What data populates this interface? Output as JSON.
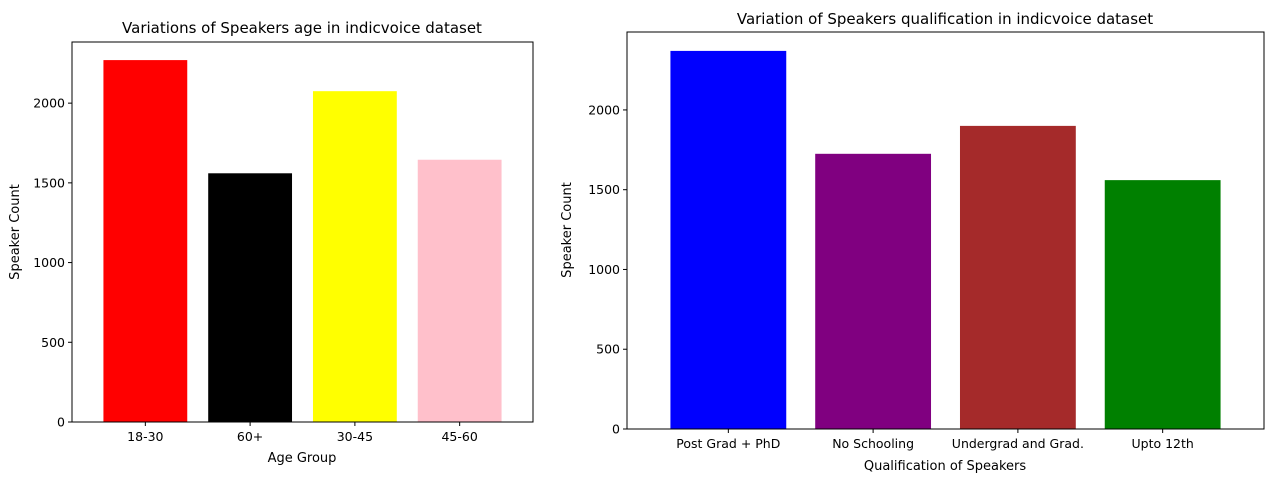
{
  "chart_data": [
    {
      "type": "bar",
      "title": "Variations of Speakers age in indicvoice dataset",
      "xlabel": "Age Group",
      "ylabel": "Speaker Count",
      "categories": [
        "18-30",
        "60+",
        "30-45",
        "45-60"
      ],
      "values": [
        2270,
        1560,
        2075,
        1645
      ],
      "colors": [
        "#ff0000",
        "#000000",
        "#ffff00",
        "#ffc0cb"
      ],
      "yticks": [
        0,
        500,
        1000,
        1500,
        2000
      ],
      "ylim": [
        0,
        2383.5
      ],
      "grid": false
    },
    {
      "type": "bar",
      "title": "Variation of Speakers qualification in indicvoice dataset",
      "xlabel": "Qualification of Speakers",
      "ylabel": "Speaker Count",
      "categories": [
        "Post Grad + PhD",
        "No Schooling",
        "Undergrad and Grad.",
        "Upto 12th"
      ],
      "values": [
        2370,
        1725,
        1900,
        1560
      ],
      "colors": [
        "#0000ff",
        "#800080",
        "#a52a2a",
        "#008000"
      ],
      "yticks": [
        0,
        500,
        1000,
        1500,
        2000
      ],
      "ylim": [
        0,
        2488.5
      ],
      "grid": false
    }
  ]
}
